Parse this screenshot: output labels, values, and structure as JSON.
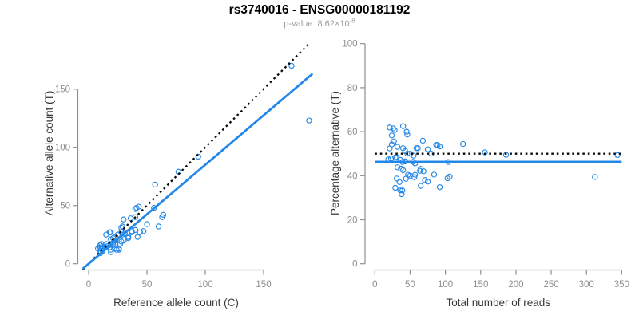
{
  "header": {
    "title": "rs3740016 - ENSG00000181192",
    "pvalue_base": "p-value: 8.62×10",
    "pvalue_exponent": "-8"
  },
  "colors": {
    "accent_blue": "#2488E8",
    "dotted_black": "#0A0A0A",
    "axis_gray": "#8E8E8E",
    "tick_label_gray": "#8E8E8E",
    "axis_title_dark": "#383838",
    "subtitle_gray": "#9E9E9E"
  },
  "chart_data": [
    {
      "type": "scatter",
      "panel": "left",
      "xlabel": "Reference allele count (C)",
      "ylabel": "Alternative allele count (T)",
      "xticks": [
        0,
        50,
        100,
        150
      ],
      "yticks": [
        0,
        50,
        100,
        150
      ],
      "xlim": [
        -5,
        192
      ],
      "ylim": [
        -5,
        190
      ],
      "grid": false,
      "legend": "none",
      "point_color": "#2488E8",
      "points": [
        [
          8,
          13
        ],
        [
          10,
          16
        ],
        [
          15,
          25
        ],
        [
          10,
          14
        ],
        [
          11,
          17
        ],
        [
          18,
          27
        ],
        [
          19,
          27
        ],
        [
          12,
          15
        ],
        [
          11,
          13
        ],
        [
          30,
          38
        ],
        [
          40,
          47
        ],
        [
          41,
          48
        ],
        [
          43,
          49
        ],
        [
          57,
          68
        ],
        [
          77,
          79
        ],
        [
          94,
          92
        ],
        [
          174,
          170
        ],
        [
          189,
          123
        ],
        [
          10,
          11
        ],
        [
          15,
          17
        ],
        [
          19,
          21
        ],
        [
          21,
          22
        ],
        [
          23,
          23
        ],
        [
          25,
          25
        ],
        [
          28,
          27
        ],
        [
          28,
          31
        ],
        [
          29,
          32
        ],
        [
          36,
          39
        ],
        [
          40,
          40
        ],
        [
          10,
          9
        ],
        [
          12,
          11
        ],
        [
          15,
          14
        ],
        [
          16,
          15
        ],
        [
          19,
          17
        ],
        [
          21,
          18
        ],
        [
          23,
          20
        ],
        [
          29,
          25
        ],
        [
          31,
          26
        ],
        [
          56,
          48
        ],
        [
          18,
          14
        ],
        [
          21,
          16
        ],
        [
          23,
          17
        ],
        [
          37,
          28
        ],
        [
          40,
          29
        ],
        [
          37,
          27
        ],
        [
          30,
          20
        ],
        [
          50,
          34
        ],
        [
          27,
          17
        ],
        [
          28,
          19
        ],
        [
          34,
          22
        ],
        [
          34,
          23
        ],
        [
          64,
          42
        ],
        [
          63,
          40
        ],
        [
          44,
          27
        ],
        [
          47,
          28
        ],
        [
          19,
          12
        ],
        [
          22,
          13
        ],
        [
          19,
          10
        ],
        [
          42,
          23
        ],
        [
          60,
          32
        ],
        [
          24,
          12
        ],
        [
          26,
          13
        ],
        [
          26,
          12
        ]
      ],
      "lines": [
        {
          "name": "identity-line",
          "type": "ab",
          "slope": 1,
          "intercept": 0,
          "style": "dotted",
          "color": "#0A0A0A"
        },
        {
          "name": "regression-line",
          "type": "ab",
          "slope": 0.85,
          "intercept": 0,
          "style": "solid",
          "color": "#2488E8"
        }
      ]
    },
    {
      "type": "scatter",
      "panel": "right",
      "xlabel": "Total number of reads",
      "ylabel": "Percentage alternative (T)",
      "xticks": [
        0,
        50,
        100,
        150,
        200,
        250,
        300,
        350
      ],
      "yticks": [
        0,
        20,
        40,
        60,
        80,
        100
      ],
      "xlim": [
        0,
        350
      ],
      "ylim": [
        0,
        100
      ],
      "grid": false,
      "legend": "none",
      "point_color": "#2488E8",
      "points": [
        [
          21,
          61.9
        ],
        [
          26,
          61.5
        ],
        [
          40,
          62.5
        ],
        [
          24,
          58.3
        ],
        [
          28,
          60.7
        ],
        [
          45,
          60
        ],
        [
          46,
          58.7
        ],
        [
          27,
          55.6
        ],
        [
          24,
          54.2
        ],
        [
          68,
          55.9
        ],
        [
          87,
          54
        ],
        [
          89,
          53.9
        ],
        [
          92,
          53.3
        ],
        [
          125,
          54.4
        ],
        [
          156,
          50.6
        ],
        [
          186,
          49.5
        ],
        [
          344,
          49.4
        ],
        [
          312,
          39.4
        ],
        [
          21,
          52.4
        ],
        [
          32,
          53.1
        ],
        [
          40,
          52.5
        ],
        [
          43,
          51.2
        ],
        [
          46,
          50
        ],
        [
          50,
          50
        ],
        [
          55,
          49.1
        ],
        [
          59,
          52.5
        ],
        [
          61,
          52.5
        ],
        [
          75,
          52
        ],
        [
          80,
          50
        ],
        [
          19,
          47.4
        ],
        [
          23,
          47.8
        ],
        [
          29,
          48.3
        ],
        [
          31,
          48.4
        ],
        [
          36,
          47.2
        ],
        [
          39,
          46.2
        ],
        [
          43,
          46.5
        ],
        [
          54,
          46.3
        ],
        [
          57,
          45.6
        ],
        [
          104,
          46.2
        ],
        [
          32,
          43.8
        ],
        [
          37,
          43.2
        ],
        [
          40,
          42.5
        ],
        [
          65,
          43.1
        ],
        [
          69,
          42
        ],
        [
          64,
          42.2
        ],
        [
          50,
          40
        ],
        [
          84,
          40.5
        ],
        [
          44,
          38.6
        ],
        [
          47,
          40.4
        ],
        [
          56,
          39.3
        ],
        [
          57,
          40.4
        ],
        [
          106,
          39.6
        ],
        [
          103,
          38.8
        ],
        [
          71,
          38
        ],
        [
          75,
          37.3
        ],
        [
          31,
          38.7
        ],
        [
          35,
          37.1
        ],
        [
          29,
          34.5
        ],
        [
          65,
          35.4
        ],
        [
          92,
          34.8
        ],
        [
          36,
          33.3
        ],
        [
          39,
          33.3
        ],
        [
          38,
          31.6
        ]
      ],
      "lines": [
        {
          "name": "expected-50pct-line",
          "type": "h",
          "y": 50,
          "style": "dotted",
          "color": "#0A0A0A"
        },
        {
          "name": "fit-line",
          "type": "h",
          "y": 46.3,
          "style": "solid",
          "color": "#2488E8"
        }
      ]
    }
  ]
}
